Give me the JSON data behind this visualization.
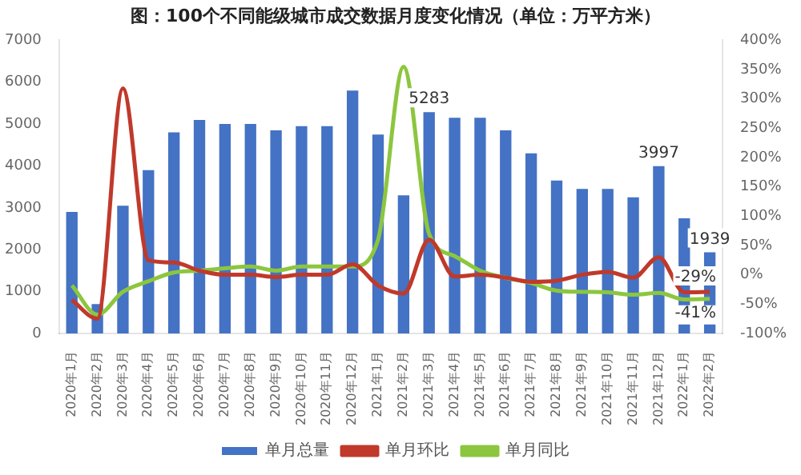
{
  "chart_data": {
    "type": "bar",
    "title": "图：100个不同能级城市成交数据月度变化情况（单位：万平方米）",
    "categories": [
      "2020年1月",
      "2020年2月",
      "2020年3月",
      "2020年4月",
      "2020年5月",
      "2020年6月",
      "2020年7月",
      "2020年8月",
      "2020年9月",
      "2020年10月",
      "2020年11月",
      "2020年12月",
      "2021年1月",
      "2021年2月",
      "2021年3月",
      "2021年4月",
      "2021年5月",
      "2021年6月",
      "2021年7月",
      "2021年8月",
      "2021年9月",
      "2021年10月",
      "2021年11月",
      "2021年12月",
      "2022年1月",
      "2022年2月"
    ],
    "series": [
      {
        "name": "单月总量",
        "color": "#4472c4",
        "values": [
          2900,
          700,
          3050,
          3900,
          4800,
          5100,
          5000,
          5000,
          4850,
          4950,
          4950,
          5800,
          4750,
          3300,
          5283,
          5150,
          5150,
          4850,
          4300,
          3650,
          3450,
          3450,
          3250,
          3997,
          2750,
          1939
        ],
        "value_labels": [
          null,
          null,
          null,
          null,
          null,
          null,
          null,
          null,
          null,
          null,
          null,
          null,
          null,
          null,
          "5283",
          null,
          null,
          null,
          null,
          null,
          null,
          null,
          null,
          "3997",
          null,
          "1939"
        ]
      },
      {
        "name": "单月环比",
        "type": "line",
        "axis": "y2",
        "color": "#c0392b",
        "values": [
          -43,
          -75,
          318,
          25,
          21,
          7,
          0,
          0,
          -4,
          0,
          0,
          18,
          -18,
          -32,
          60,
          -3,
          0,
          -5,
          -12,
          -10,
          0,
          5,
          -5,
          30,
          -30,
          -29
        ],
        "value_labels": [
          null,
          null,
          null,
          null,
          null,
          null,
          null,
          null,
          null,
          null,
          null,
          null,
          null,
          null,
          null,
          null,
          null,
          null,
          null,
          null,
          null,
          null,
          null,
          null,
          null,
          "-29%"
        ]
      },
      {
        "name": "单月同比",
        "type": "line",
        "axis": "y2",
        "color": "#8cc63f",
        "values": [
          -18,
          -68,
          -29,
          -11,
          4,
          7,
          11,
          14,
          7,
          14,
          14,
          14,
          60,
          355,
          70,
          32,
          7,
          -5,
          -14,
          -27,
          -29,
          -30,
          -34,
          -31,
          -42,
          -41
        ],
        "value_labels": [
          null,
          null,
          null,
          null,
          null,
          null,
          null,
          null,
          null,
          null,
          null,
          null,
          null,
          null,
          null,
          null,
          null,
          null,
          null,
          null,
          null,
          null,
          null,
          null,
          null,
          "-41%"
        ]
      }
    ],
    "ylim": [
      0,
      7000
    ],
    "yticks": [
      0,
      1000,
      2000,
      3000,
      4000,
      5000,
      6000,
      7000
    ],
    "y2lim": [
      -100,
      400
    ],
    "y2ticks": [
      {
        "value": -100,
        "label": "-100%"
      },
      {
        "value": -50,
        "label": "-50%"
      },
      {
        "value": 0,
        "label": "0%"
      },
      {
        "value": 50,
        "label": "50%"
      },
      {
        "value": 100,
        "label": "100%"
      },
      {
        "value": 150,
        "label": "150%"
      },
      {
        "value": 200,
        "label": "200%"
      },
      {
        "value": 250,
        "label": "250%"
      },
      {
        "value": 300,
        "label": "300%"
      },
      {
        "value": 350,
        "label": "350%"
      },
      {
        "value": 400,
        "label": "400%"
      }
    ],
    "grid": false,
    "legend": "bottom",
    "marker": "none",
    "line_style": "solid"
  }
}
